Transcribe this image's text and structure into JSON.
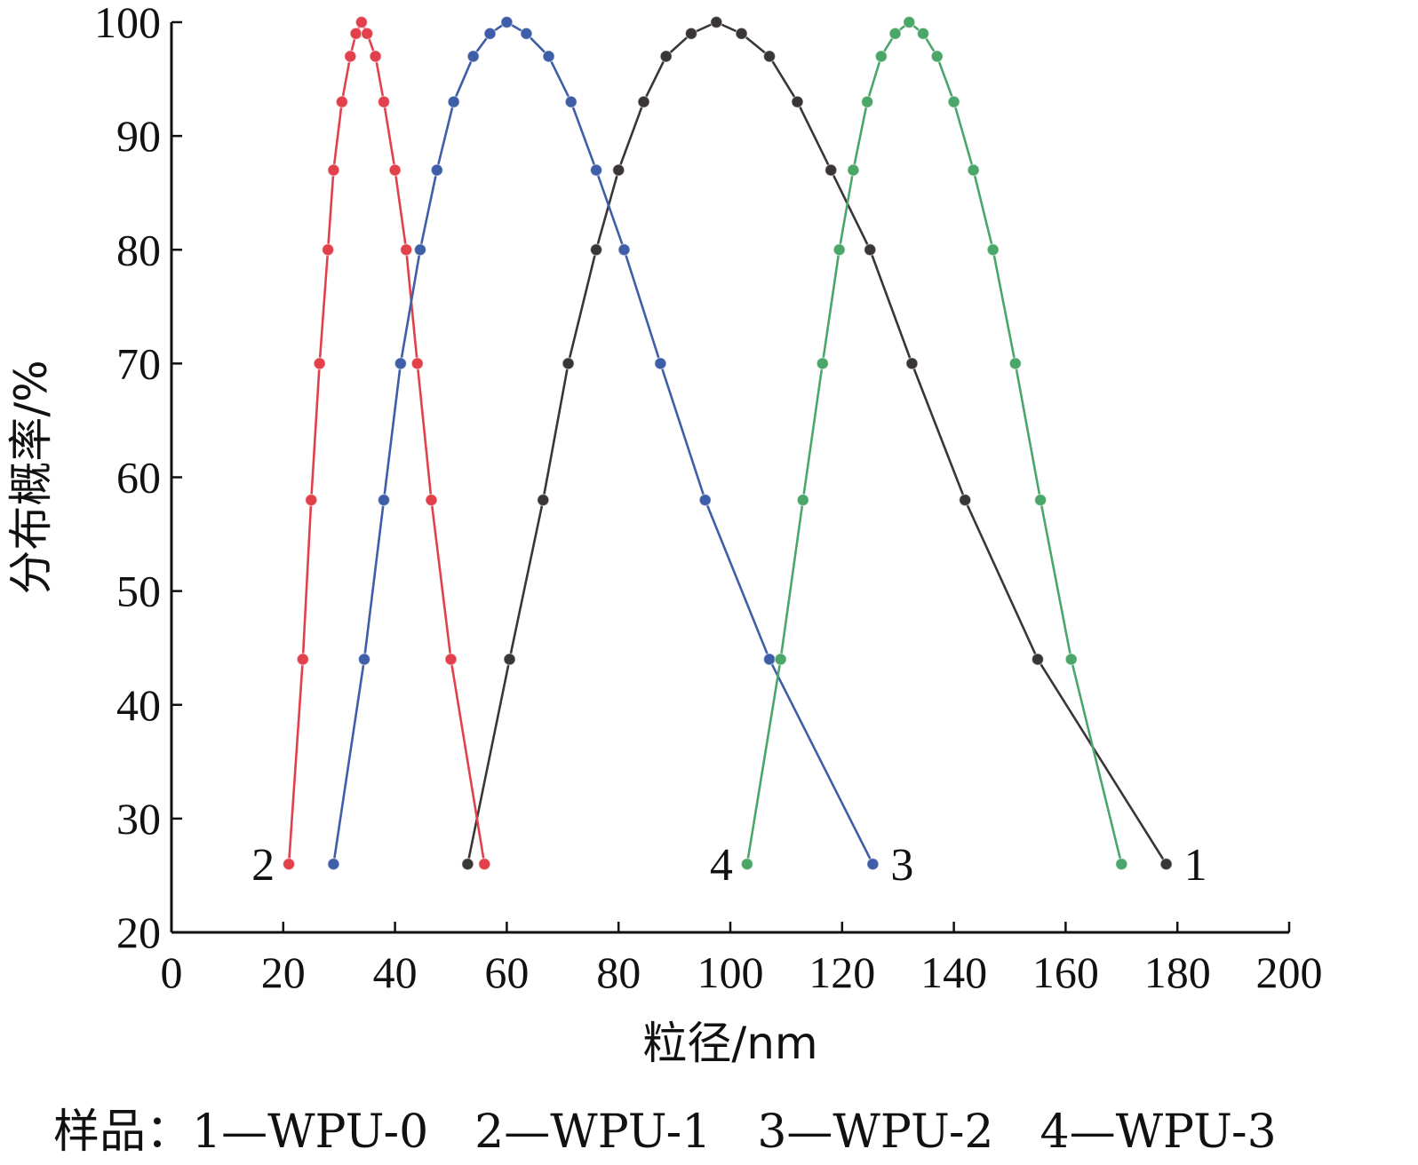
{
  "caption": "样品：1—WPU-0　2—WPU-1　3—WPU-2　4—WPU-3",
  "chart_data": {
    "type": "line",
    "xlabel": "粒径/nm",
    "ylabel": "分布概率/%",
    "xlim": [
      0,
      200
    ],
    "ylim": [
      20,
      100
    ],
    "xticks": [
      0,
      20,
      40,
      60,
      80,
      100,
      120,
      140,
      160,
      180,
      200
    ],
    "yticks": [
      20,
      30,
      40,
      50,
      60,
      70,
      80,
      90,
      100
    ],
    "grid": false,
    "series": [
      {
        "name": "1",
        "color": "#3a3536",
        "x": [
          53,
          60.5,
          66.5,
          71,
          76,
          80,
          84.5,
          88.5,
          93,
          97.5,
          102,
          107,
          112,
          118,
          125,
          132.5,
          142,
          155,
          178
        ],
        "y": [
          26,
          44,
          58,
          70,
          80,
          87,
          93,
          97,
          99,
          100,
          99,
          97,
          93,
          87,
          80,
          70,
          58,
          44,
          26
        ]
      },
      {
        "name": "2",
        "color": "#e2414b",
        "x": [
          21,
          23.5,
          25,
          26.5,
          28,
          29,
          30.5,
          32,
          33,
          34,
          35,
          36.5,
          38,
          40,
          42,
          44,
          46.5,
          50,
          56
        ],
        "y": [
          26,
          44,
          58,
          70,
          80,
          87,
          93,
          97,
          99,
          100,
          99,
          97,
          93,
          87,
          80,
          70,
          58,
          44,
          26
        ]
      },
      {
        "name": "3",
        "color": "#3f5ea8",
        "x": [
          29,
          34.5,
          38,
          41,
          44.5,
          47.5,
          50.5,
          54,
          57,
          60,
          63.5,
          67.5,
          71.5,
          76,
          81,
          87.5,
          95.5,
          107,
          125.5
        ],
        "y": [
          26,
          44,
          58,
          70,
          80,
          87,
          93,
          97,
          99,
          100,
          99,
          97,
          93,
          87,
          80,
          70,
          58,
          44,
          26
        ]
      },
      {
        "name": "4",
        "color": "#4ba66a",
        "x": [
          103,
          109,
          113,
          116.5,
          119.5,
          122,
          124.5,
          127,
          129.5,
          132,
          134.5,
          137,
          140,
          143.5,
          147,
          151,
          155.5,
          161,
          170
        ],
        "y": [
          26,
          44,
          58,
          70,
          80,
          87,
          93,
          97,
          99,
          100,
          99,
          97,
          93,
          87,
          80,
          70,
          58,
          44,
          26
        ]
      }
    ]
  }
}
